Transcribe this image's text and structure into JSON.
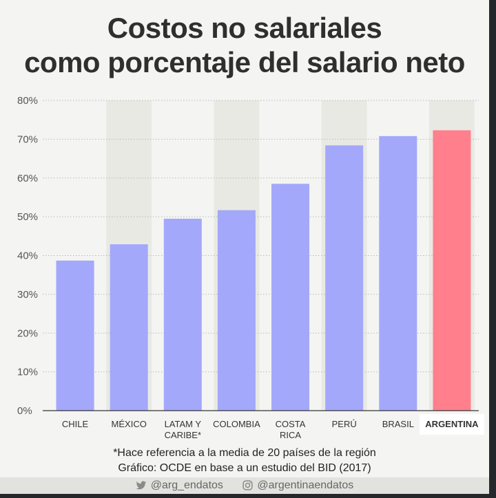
{
  "title_lines": [
    "Costos no salariales",
    "como porcentaje del salario neto"
  ],
  "footnotes": [
    "*Hace referencia a la media de 20 países de la región",
    "Gráfico: OCDE en base a un estudio del BID (2017)"
  ],
  "social": {
    "twitter_icon": "twitter-bird-icon",
    "twitter": "@arg_endatos",
    "instagram_icon": "instagram-icon",
    "instagram": "@argentinaendatos"
  },
  "colors": {
    "bar": "#a3a8fb",
    "highlight": "#ff7f8c",
    "band": "#e9e9e4",
    "background": "#f4f4f2"
  },
  "chart_data": {
    "type": "bar",
    "categories": [
      "CHILE",
      "MÉXICO",
      "LATAM Y CARIBE*",
      "COLOMBIA",
      "COSTA RICA",
      "PERÚ",
      "BRASIL",
      "ARGENTINA"
    ],
    "category_lines": [
      [
        "CHILE"
      ],
      [
        "MÉXICO"
      ],
      [
        "LATAM Y",
        "CARIBE*"
      ],
      [
        "COLOMBIA"
      ],
      [
        "COSTA",
        "RICA"
      ],
      [
        "PERÚ"
      ],
      [
        "BRASIL"
      ],
      [
        "ARGENTINA"
      ]
    ],
    "values": [
      38.7,
      42.9,
      49.5,
      51.7,
      58.5,
      68.4,
      70.8,
      72.3
    ],
    "highlight": "ARGENTINA",
    "ylim": [
      0,
      80
    ],
    "yticks": [
      0,
      10,
      20,
      30,
      40,
      50,
      60,
      70,
      80
    ],
    "ytick_labels": [
      "0%",
      "10%",
      "20%",
      "30%",
      "40%",
      "50%",
      "60%",
      "70%",
      "80%"
    ],
    "grid": true,
    "alternating_bands": true
  }
}
